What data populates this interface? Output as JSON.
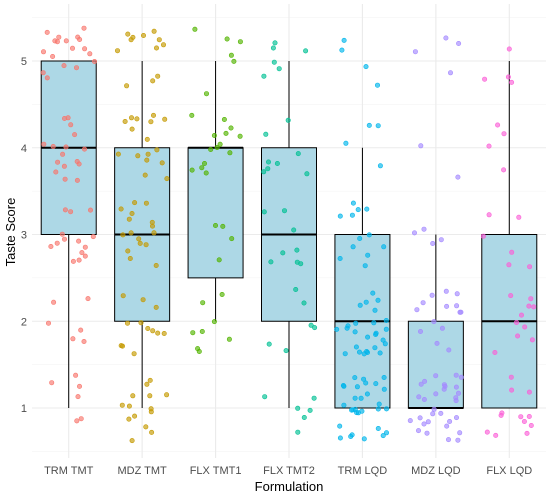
{
  "chart_data": {
    "type": "box",
    "xlabel": "Formulation",
    "ylabel": "Taste Score",
    "ylim": [
      0.45,
      5.45
    ],
    "y_ticks": [
      1,
      2,
      3,
      4,
      5
    ],
    "grid": true,
    "box_fill": "#add8e6",
    "categories": [
      "TRM TMT",
      "MDZ TMT",
      "FLX TMT1",
      "FLX TMT2",
      "TRM LQD",
      "MDZ LQD",
      "FLX LQD"
    ],
    "point_colors": [
      "#f8766d",
      "#c49a00",
      "#53b400",
      "#00c094",
      "#00b6eb",
      "#a58aff",
      "#fb61d7"
    ],
    "boxes": [
      {
        "q1": 3,
        "median": 4,
        "q3": 5,
        "whisker_low": 1,
        "whisker_high": 5
      },
      {
        "q1": 2,
        "median": 3,
        "q3": 4,
        "whisker_low": 1,
        "whisker_high": 5
      },
      {
        "q1": 2.5,
        "median": 4,
        "q3": 4,
        "whisker_low": 2,
        "whisker_high": 5
      },
      {
        "q1": 2,
        "median": 3,
        "q3": 4,
        "whisker_low": 1,
        "whisker_high": 5
      },
      {
        "q1": 1,
        "median": 2,
        "q3": 3,
        "whisker_low": 1,
        "whisker_high": 4
      },
      {
        "q1": 1,
        "median": 1,
        "q3": 2,
        "whisker_low": 1,
        "whisker_high": 3
      },
      {
        "q1": 1,
        "median": 2,
        "q3": 3,
        "whisker_low": 1,
        "whisker_high": 5
      }
    ],
    "points": [
      {
        "counts": {
          "1": 6,
          "2": 6,
          "3": 14,
          "4": 16,
          "5": 18
        }
      },
      {
        "counts": {
          "1": 14,
          "2": 12,
          "3": 16,
          "4": 16,
          "5": 12
        }
      },
      {
        "counts": {
          "2": 8,
          "3": 4,
          "4": 14,
          "5": 6
        }
      },
      {
        "counts": {
          "1": 6,
          "2": 6,
          "3": 8,
          "4": 8,
          "5": 6
        }
      },
      {
        "counts": {
          "1": 30,
          "2": 26,
          "3": 12,
          "4": 4,
          "5": 4
        }
      },
      {
        "counts": {
          "1": 30,
          "2": 14,
          "3": 4,
          "4": 2,
          "5": 4
        }
      },
      {
        "counts": {
          "1": 12,
          "2": 10,
          "3": 6,
          "4": 4,
          "5": 4
        }
      }
    ]
  }
}
